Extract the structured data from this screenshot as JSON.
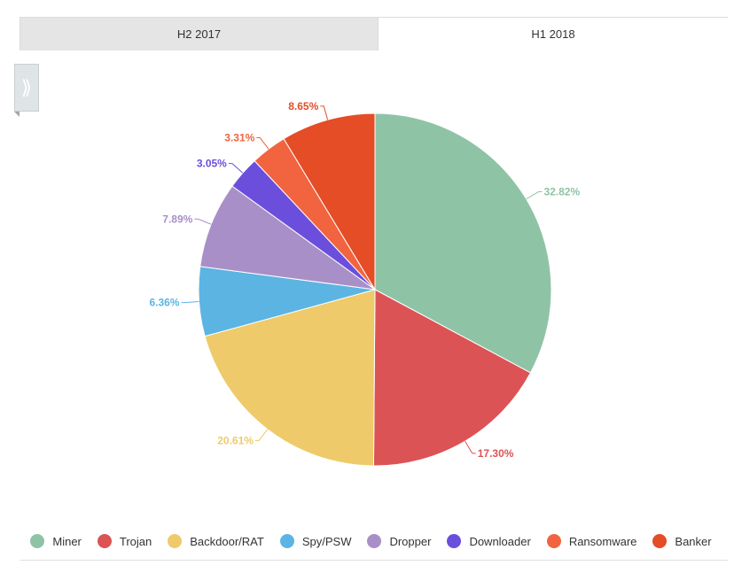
{
  "tabs": [
    {
      "label": "H2 2017",
      "active": false
    },
    {
      "label": "H1 2018",
      "active": true
    }
  ],
  "side_toggle": {
    "glyph": "⟫"
  },
  "chart_data": {
    "type": "pie",
    "categories": [
      "Miner",
      "Trojan",
      "Backdoor/RAT",
      "Spy/PSW",
      "Dropper",
      "Downloader",
      "Ransomware",
      "Banker"
    ],
    "values": [
      32.82,
      17.3,
      20.61,
      6.36,
      7.89,
      3.05,
      3.31,
      8.65
    ],
    "labels": [
      "32.82%",
      "17.30%",
      "20.61%",
      "6.36%",
      "7.89%",
      "3.05%",
      "3.31%",
      "8.65%"
    ],
    "colors": [
      "#8fc3a6",
      "#dc5355",
      "#eeca6a",
      "#5cb4e3",
      "#a98fc8",
      "#6b4fdc",
      "#f1643f",
      "#e44d26"
    ],
    "legend_position": "bottom",
    "start_angle": "12 o'clock, clockwise"
  }
}
